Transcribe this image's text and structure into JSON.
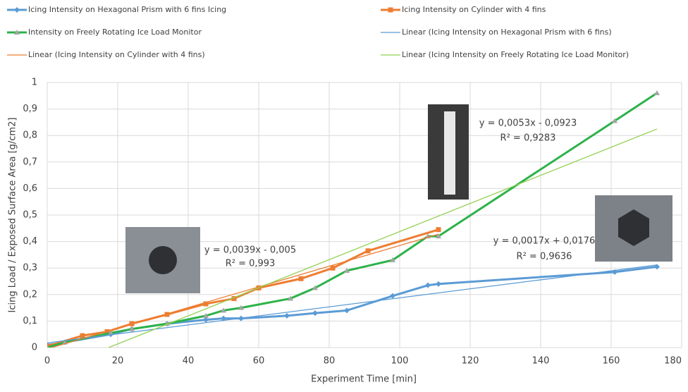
{
  "chart_data": {
    "type": "line",
    "x_label": "Experiment Time [min]",
    "y_label": "Icing Load / Exposed Surface Area [g/cm2]",
    "xlim": [
      0,
      180
    ],
    "xticks": [
      0,
      20,
      40,
      60,
      80,
      100,
      120,
      140,
      160,
      180
    ],
    "ylim": [
      0,
      1
    ],
    "yticks": [
      0,
      {
        "value": 0.1,
        "label": "0,1"
      },
      {
        "value": 0.2,
        "label": "0,2"
      },
      {
        "value": 0.3,
        "label": "0,3"
      },
      {
        "value": 0.4,
        "label": "0,4"
      },
      {
        "value": 0.5,
        "label": "0,5"
      },
      {
        "value": 0.6,
        "label": "0,6"
      },
      {
        "value": 0.7,
        "label": "0,7"
      },
      {
        "value": 0.8,
        "label": "0,8"
      },
      {
        "value": 0.9,
        "label": "0,9"
      },
      1
    ],
    "grid": true,
    "series": [
      {
        "name": "Icing Intensity on Hexagonal Prism with 6 fins Icing",
        "color": "#5b9bd5",
        "marker": "diamond",
        "width": 3,
        "x": [
          0,
          5,
          18,
          24,
          34,
          45,
          50,
          55,
          68,
          76,
          85,
          98,
          108,
          111,
          161,
          173
        ],
        "values": [
          0.01,
          0.02,
          0.05,
          0.07,
          0.09,
          0.105,
          0.11,
          0.11,
          0.12,
          0.13,
          0.14,
          0.195,
          0.235,
          0.24,
          0.285,
          0.305
        ]
      },
      {
        "name": "Icing Intensity on Cylinder with 4 fins",
        "color": "#ed7d31",
        "marker": "square",
        "width": 3,
        "x": [
          0,
          10,
          17,
          24,
          34,
          45,
          53,
          60,
          72,
          81,
          91,
          111
        ],
        "values": [
          0.005,
          0.045,
          0.06,
          0.09,
          0.125,
          0.165,
          0.185,
          0.225,
          0.26,
          0.3,
          0.365,
          0.445
        ]
      },
      {
        "name": "Intensity on Freely Rotating Ice Load Monitor",
        "color": "#2db24a",
        "marker": "triangle",
        "width": 3,
        "x": [
          0,
          5,
          18,
          24,
          34,
          45,
          50,
          55,
          69,
          76,
          85,
          98,
          108,
          111,
          161,
          173
        ],
        "values": [
          0,
          0.02,
          0.055,
          0.07,
          0.09,
          0.12,
          0.14,
          0.15,
          0.185,
          0.225,
          0.29,
          0.33,
          0.42,
          0.42,
          0.855,
          0.96
        ]
      },
      {
        "name": "Linear (Icing Intensity on Hexagonal Prism with 6 fins)",
        "color": "#5b9bd5",
        "marker": "none",
        "width": 1.3,
        "x": [
          0,
          173
        ],
        "values": [
          0.0176,
          0.3117
        ]
      },
      {
        "name": "Linear (Icing Intensity on Cylinder with 4 fins)",
        "color": "#ed7d31",
        "marker": "none",
        "width": 1.3,
        "x": [
          0,
          111
        ],
        "values": [
          -0.005,
          0.4279
        ]
      },
      {
        "name": "Linear (Icing Intensity on Freely Rotating Ice Load Monitor)",
        "color": "#92d050",
        "marker": "none",
        "width": 1.3,
        "x": [
          17.4,
          173
        ],
        "values": [
          0,
          0.8246
        ]
      }
    ],
    "annotations": [
      "y = 0,0039x - 0,005",
      "R² = 0,993",
      "y = 0,0053x - 0,0923",
      "R² = 0,9283",
      "y = 0,0017x + 0,0176",
      "R² = 0,9636"
    ]
  }
}
